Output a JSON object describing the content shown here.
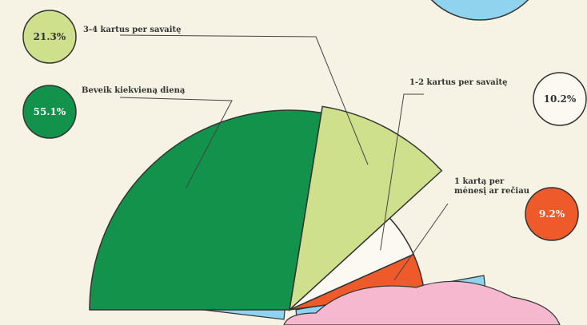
{
  "chart_data": {
    "type": "pie",
    "categories": [
      "Beveik kiekvieną dieną",
      "3-4 kartus per savaitę",
      "1-2 kartus per savaitę",
      "1 kartą per mėnesį ar rečiau"
    ],
    "values": [
      55.1,
      21.3,
      10.2,
      9.2
    ],
    "value_labels": [
      "55.1%",
      "21.3%",
      "10.2%",
      "9.2%"
    ],
    "colors": [
      "#12924a",
      "#cfe08c",
      "#fbf9f1",
      "#ef5a2b"
    ]
  }
}
